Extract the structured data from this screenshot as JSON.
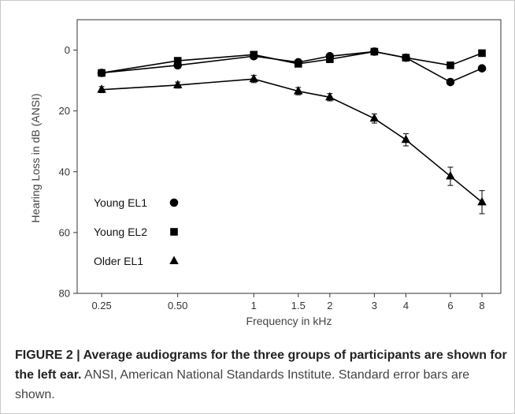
{
  "chart_data": {
    "type": "line",
    "xlabel": "Frequency in kHz",
    "ylabel": "Hearing Loss in dB (ANSI)",
    "x_scale": "log",
    "x": [
      0.25,
      0.5,
      1,
      1.5,
      2,
      3,
      4,
      6,
      8
    ],
    "xtick_labels": [
      "0.25",
      "0.50",
      "1",
      "1.5",
      "2",
      "3",
      "4",
      "6",
      "8"
    ],
    "ylim": [
      80,
      -10
    ],
    "yticks": [
      0,
      20,
      40,
      60,
      80
    ],
    "y_inverted": true,
    "grid": false,
    "legend_position": "lower-left",
    "series": [
      {
        "name": "Young EL1",
        "marker": "circle",
        "values": [
          7.5,
          5,
          2,
          4,
          2,
          0.5,
          2.5,
          10.5,
          6
        ]
      },
      {
        "name": "Young EL2",
        "marker": "square",
        "values": [
          7.5,
          3.5,
          1.5,
          4.5,
          3,
          0.5,
          2.5,
          5,
          1
        ]
      },
      {
        "name": "Older EL1",
        "marker": "triangle",
        "values": [
          13,
          11.5,
          9.5,
          13.5,
          15.5,
          22.5,
          29.5,
          41.5,
          50
        ],
        "errors": [
          1.0,
          1.0,
          1.2,
          1.2,
          1.2,
          1.5,
          2.0,
          3.0,
          3.8
        ]
      }
    ]
  },
  "caption": {
    "bold": "FIGURE 2 | Average audiograms for the three groups of participants are shown for the left ear.",
    "normal": " ANSI, American National Standards Institute. Standard error bars are shown."
  },
  "colors": {
    "marks": "#000000",
    "axis": "#333333"
  }
}
